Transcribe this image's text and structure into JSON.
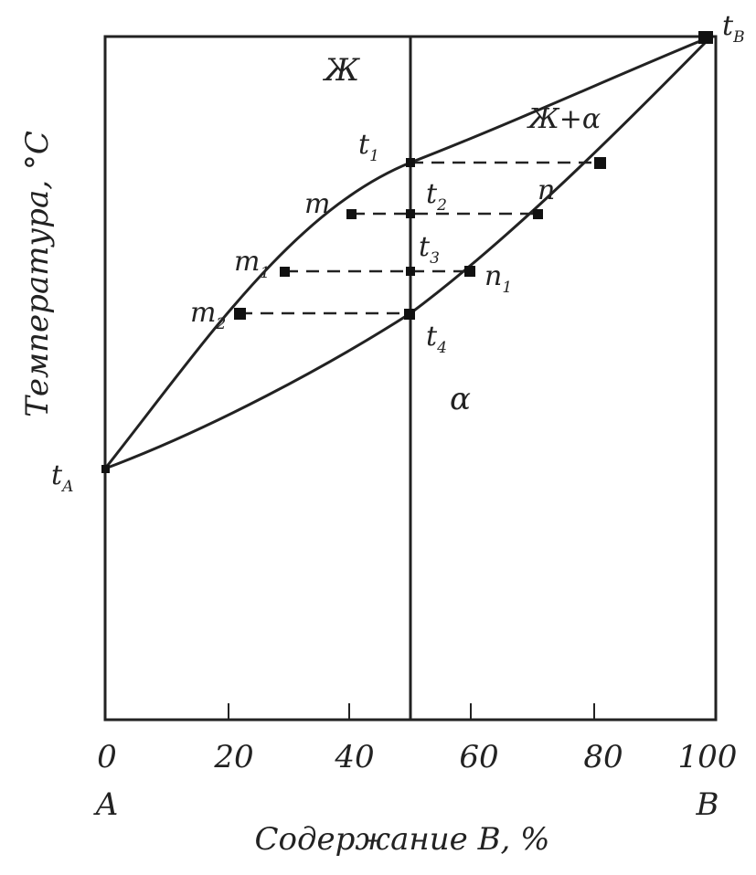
{
  "diagram": {
    "y_axis_label": "Температура, °С",
    "x_axis_label": "Содержание B, %",
    "x_ticks": [
      "0",
      "20",
      "40",
      "60",
      "80",
      "100"
    ],
    "component_left": "A",
    "component_right": "B",
    "region_liquid": "Ж",
    "region_two_phase": "Ж+α",
    "region_solid": "α",
    "melt_a": {
      "main": "t",
      "sub": "A"
    },
    "melt_b": {
      "main": "t",
      "sub": "B"
    },
    "points": {
      "t1": {
        "main": "t",
        "sub": "1"
      },
      "t2": {
        "main": "t",
        "sub": "2"
      },
      "t3": {
        "main": "t",
        "sub": "3"
      },
      "t4": {
        "main": "t",
        "sub": "4"
      },
      "m": {
        "main": "m",
        "sub": ""
      },
      "m1": {
        "main": "m",
        "sub": "1"
      },
      "m2": {
        "main": "m",
        "sub": "2"
      },
      "n": {
        "main": "n",
        "sub": ""
      },
      "n1": {
        "main": "n",
        "sub": "1"
      }
    }
  }
}
